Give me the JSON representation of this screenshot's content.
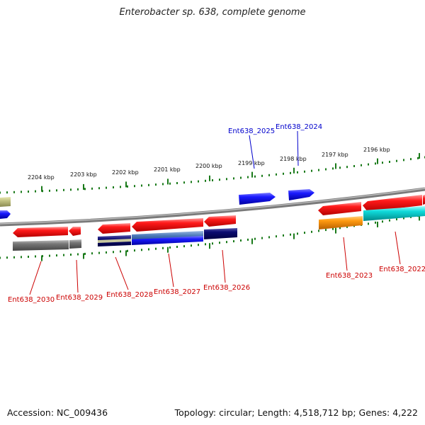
{
  "title": "Enterobacter sp. 638, complete genome",
  "footer": {
    "accession": "Accession: NC_009436",
    "topology": "Topology: circular; Length: 4,518,712 bp; Genes: 4,222"
  },
  "scale_labels": [
    "2204 kbp",
    "2203 kbp",
    "2202 kbp",
    "2201 kbp",
    "2200 kbp",
    "2199 kbp",
    "2198 kbp",
    "2197 kbp",
    "2196 kbp"
  ],
  "gene_labels_top": [
    "Ent638_2025",
    "Ent638_2024"
  ],
  "gene_labels_bottom": [
    "Ent638_2030",
    "Ent638_2029",
    "Ent638_2028",
    "Ent638_2027",
    "Ent638_2026",
    "Ent638_2023",
    "Ent638_2022"
  ],
  "colors": {
    "backbone": "#888888",
    "tick": "#1a7a1a",
    "cds": "#ee1111",
    "top_label": "#0000cc",
    "bottom_label": "#cc0000"
  }
}
